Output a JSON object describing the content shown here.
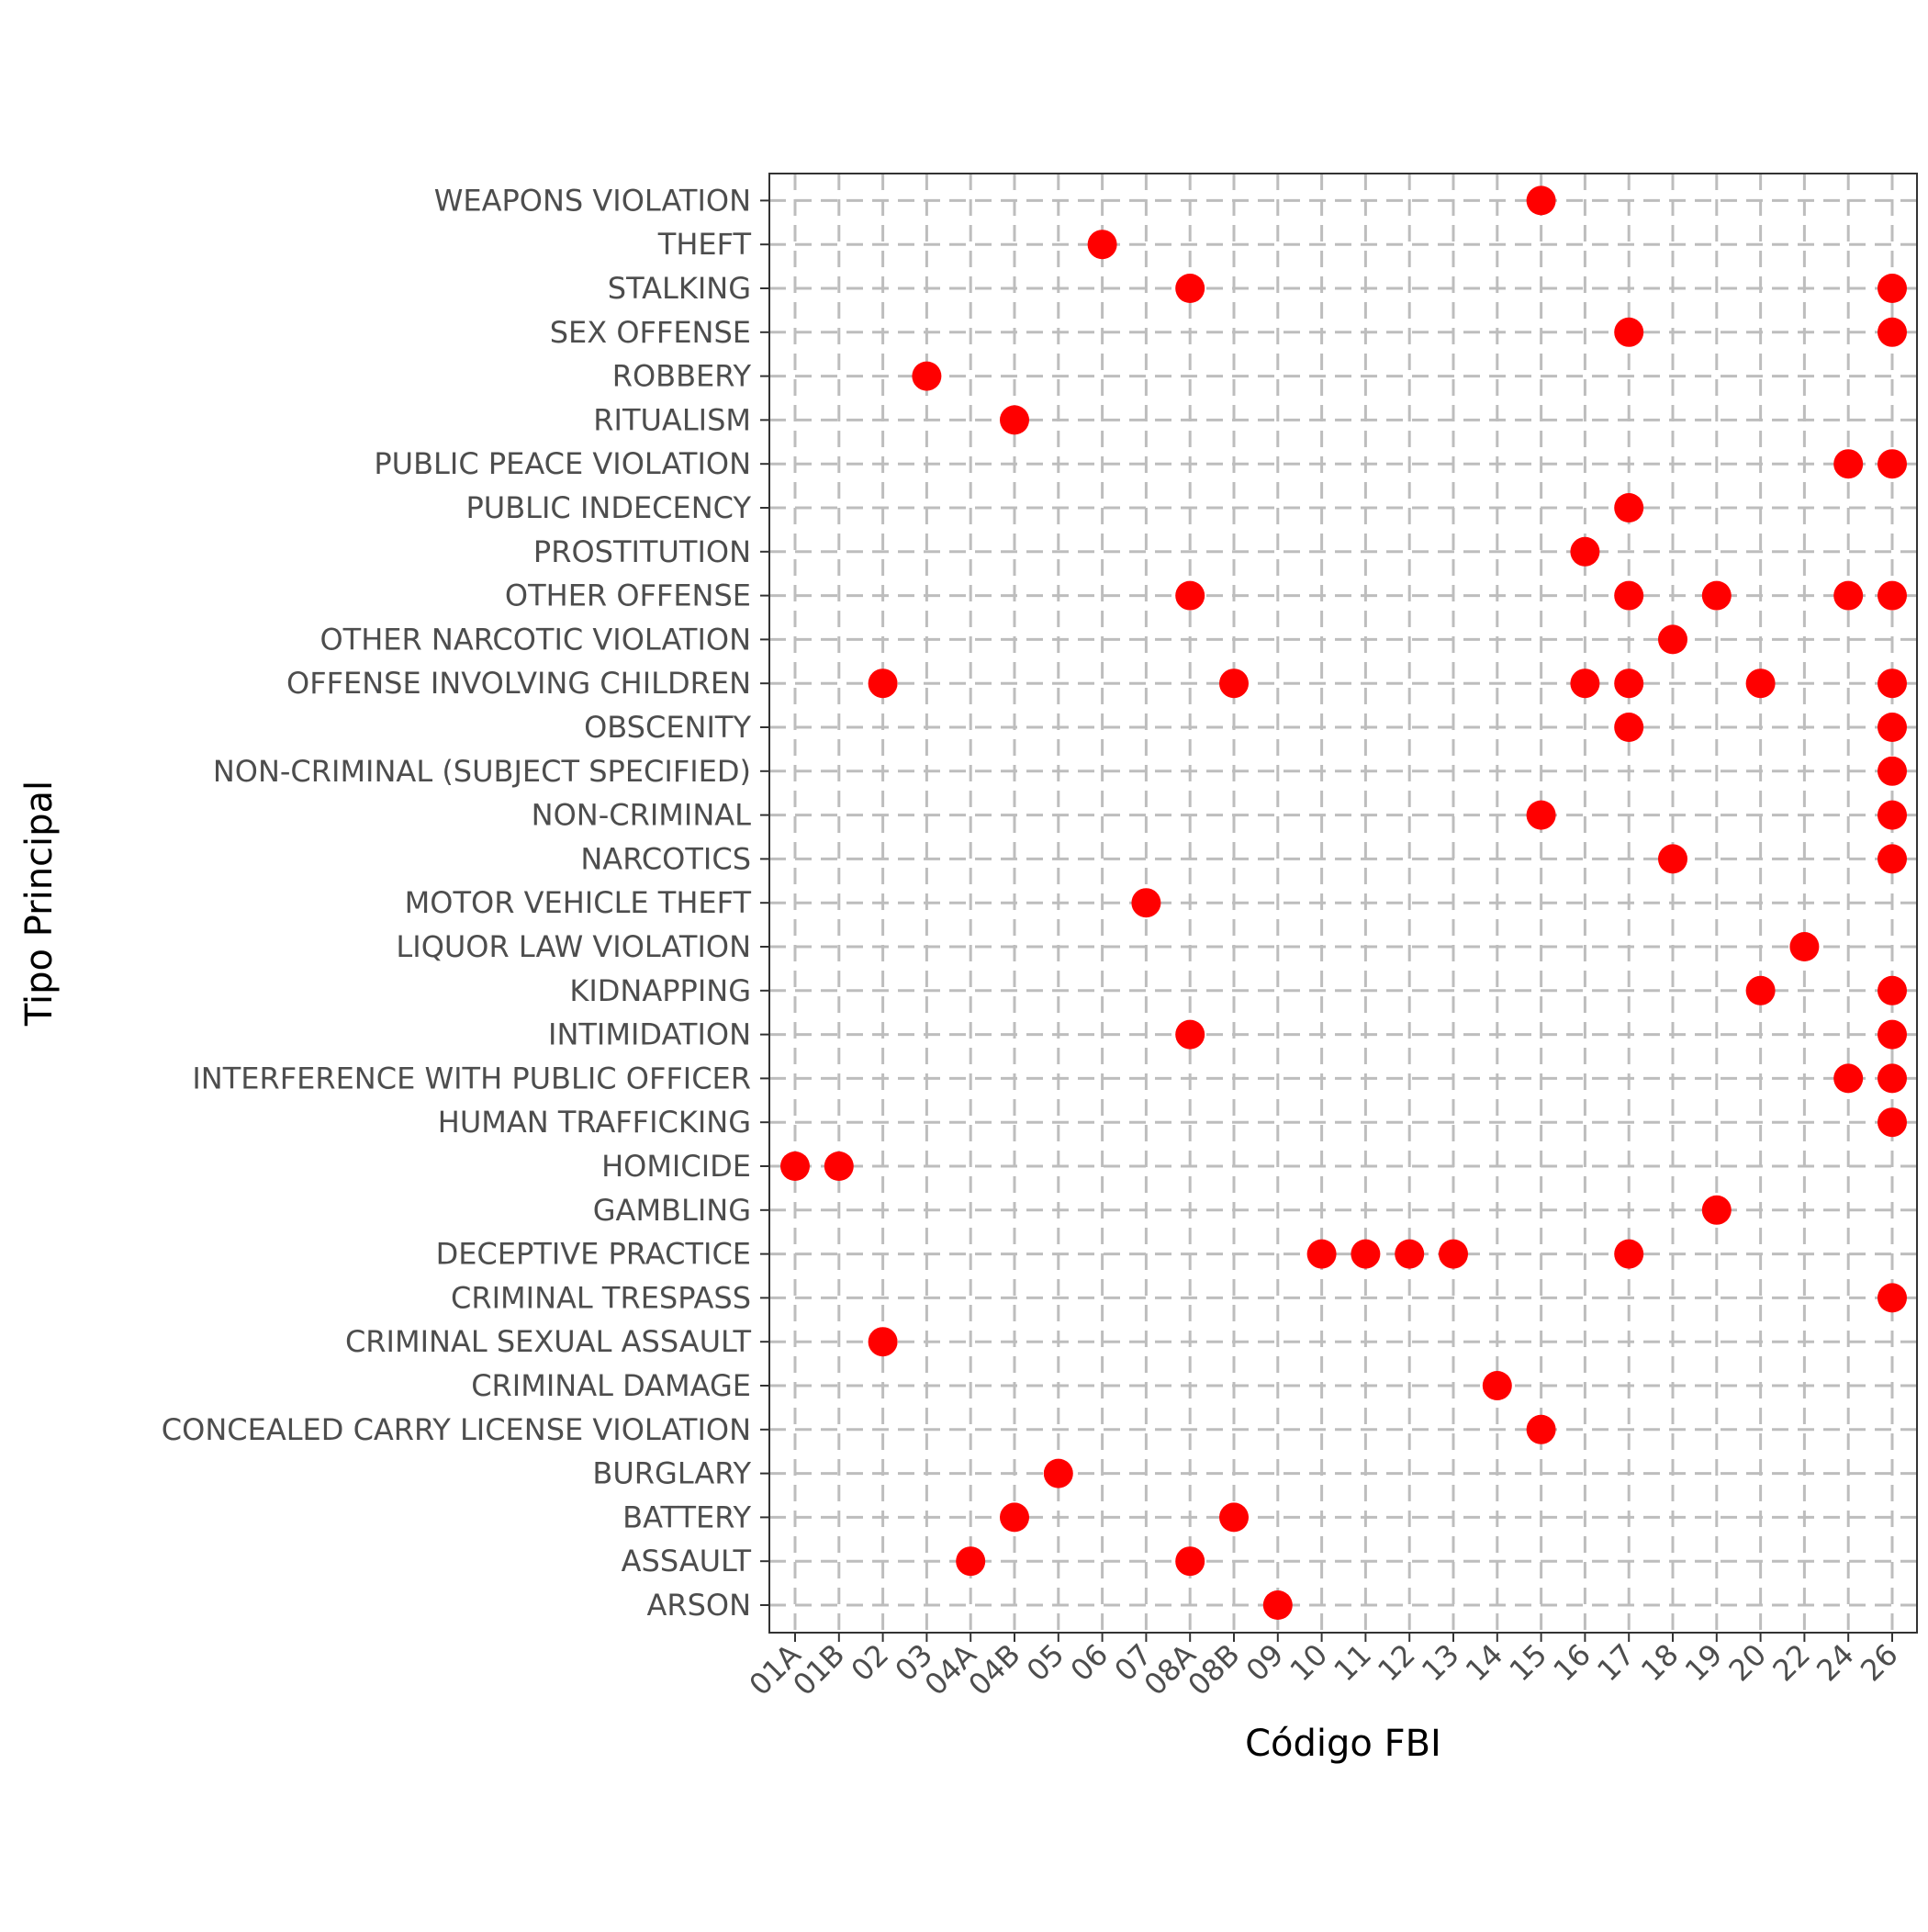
{
  "chart_data": {
    "type": "scatter",
    "title": "",
    "xlabel": "Código FBI",
    "ylabel": "Tipo Principal",
    "grid": true,
    "legend": "none",
    "marker_color": "#ff0000",
    "x_categories": [
      "01A",
      "01B",
      "02",
      "03",
      "04A",
      "04B",
      "05",
      "06",
      "07",
      "08A",
      "08B",
      "09",
      "10",
      "11",
      "12",
      "13",
      "14",
      "15",
      "16",
      "17",
      "18",
      "19",
      "20",
      "22",
      "24",
      "26"
    ],
    "y_categories": [
      "ARSON",
      "ASSAULT",
      "BATTERY",
      "BURGLARY",
      "CONCEALED CARRY LICENSE VIOLATION",
      "CRIMINAL DAMAGE",
      "CRIMINAL SEXUAL ASSAULT",
      "CRIMINAL TRESPASS",
      "DECEPTIVE PRACTICE",
      "GAMBLING",
      "HOMICIDE",
      "HUMAN TRAFFICKING",
      "INTERFERENCE WITH PUBLIC OFFICER",
      "INTIMIDATION",
      "KIDNAPPING",
      "LIQUOR LAW VIOLATION",
      "MOTOR VEHICLE THEFT",
      "NARCOTICS",
      "NON-CRIMINAL",
      "NON-CRIMINAL (SUBJECT SPECIFIED)",
      "OBSCENITY",
      "OFFENSE INVOLVING CHILDREN",
      "OTHER NARCOTIC VIOLATION",
      "OTHER OFFENSE",
      "PROSTITUTION",
      "PUBLIC INDECENCY",
      "PUBLIC PEACE VIOLATION",
      "RITUALISM",
      "ROBBERY",
      "SEX OFFENSE",
      "STALKING",
      "THEFT",
      "WEAPONS VIOLATION"
    ],
    "points": [
      {
        "x": "15",
        "y": "WEAPONS VIOLATION"
      },
      {
        "x": "06",
        "y": "THEFT"
      },
      {
        "x": "08A",
        "y": "STALKING"
      },
      {
        "x": "26",
        "y": "STALKING"
      },
      {
        "x": "17",
        "y": "SEX OFFENSE"
      },
      {
        "x": "26",
        "y": "SEX OFFENSE"
      },
      {
        "x": "03",
        "y": "ROBBERY"
      },
      {
        "x": "04B",
        "y": "RITUALISM"
      },
      {
        "x": "24",
        "y": "PUBLIC PEACE VIOLATION"
      },
      {
        "x": "26",
        "y": "PUBLIC PEACE VIOLATION"
      },
      {
        "x": "17",
        "y": "PUBLIC INDECENCY"
      },
      {
        "x": "16",
        "y": "PROSTITUTION"
      },
      {
        "x": "08A",
        "y": "OTHER OFFENSE"
      },
      {
        "x": "17",
        "y": "OTHER OFFENSE"
      },
      {
        "x": "19",
        "y": "OTHER OFFENSE"
      },
      {
        "x": "24",
        "y": "OTHER OFFENSE"
      },
      {
        "x": "26",
        "y": "OTHER OFFENSE"
      },
      {
        "x": "18",
        "y": "OTHER NARCOTIC VIOLATION"
      },
      {
        "x": "02",
        "y": "OFFENSE INVOLVING CHILDREN"
      },
      {
        "x": "08B",
        "y": "OFFENSE INVOLVING CHILDREN"
      },
      {
        "x": "16",
        "y": "OFFENSE INVOLVING CHILDREN"
      },
      {
        "x": "17",
        "y": "OFFENSE INVOLVING CHILDREN"
      },
      {
        "x": "20",
        "y": "OFFENSE INVOLVING CHILDREN"
      },
      {
        "x": "26",
        "y": "OFFENSE INVOLVING CHILDREN"
      },
      {
        "x": "17",
        "y": "OBSCENITY"
      },
      {
        "x": "26",
        "y": "OBSCENITY"
      },
      {
        "x": "26",
        "y": "NON-CRIMINAL (SUBJECT SPECIFIED)"
      },
      {
        "x": "15",
        "y": "NON-CRIMINAL"
      },
      {
        "x": "26",
        "y": "NON-CRIMINAL"
      },
      {
        "x": "18",
        "y": "NARCOTICS"
      },
      {
        "x": "26",
        "y": "NARCOTICS"
      },
      {
        "x": "07",
        "y": "MOTOR VEHICLE THEFT"
      },
      {
        "x": "22",
        "y": "LIQUOR LAW VIOLATION"
      },
      {
        "x": "20",
        "y": "KIDNAPPING"
      },
      {
        "x": "26",
        "y": "KIDNAPPING"
      },
      {
        "x": "08A",
        "y": "INTIMIDATION"
      },
      {
        "x": "26",
        "y": "INTIMIDATION"
      },
      {
        "x": "24",
        "y": "INTERFERENCE WITH PUBLIC OFFICER"
      },
      {
        "x": "26",
        "y": "INTERFERENCE WITH PUBLIC OFFICER"
      },
      {
        "x": "26",
        "y": "HUMAN TRAFFICKING"
      },
      {
        "x": "01A",
        "y": "HOMICIDE"
      },
      {
        "x": "01B",
        "y": "HOMICIDE"
      },
      {
        "x": "19",
        "y": "GAMBLING"
      },
      {
        "x": "10",
        "y": "DECEPTIVE PRACTICE"
      },
      {
        "x": "11",
        "y": "DECEPTIVE PRACTICE"
      },
      {
        "x": "12",
        "y": "DECEPTIVE PRACTICE"
      },
      {
        "x": "13",
        "y": "DECEPTIVE PRACTICE"
      },
      {
        "x": "17",
        "y": "DECEPTIVE PRACTICE"
      },
      {
        "x": "26",
        "y": "CRIMINAL TRESPASS"
      },
      {
        "x": "02",
        "y": "CRIMINAL SEXUAL ASSAULT"
      },
      {
        "x": "14",
        "y": "CRIMINAL DAMAGE"
      },
      {
        "x": "15",
        "y": "CONCEALED CARRY LICENSE VIOLATION"
      },
      {
        "x": "05",
        "y": "BURGLARY"
      },
      {
        "x": "04B",
        "y": "BATTERY"
      },
      {
        "x": "08B",
        "y": "BATTERY"
      },
      {
        "x": "04A",
        "y": "ASSAULT"
      },
      {
        "x": "08A",
        "y": "ASSAULT"
      },
      {
        "x": "09",
        "y": "ARSON"
      }
    ]
  }
}
